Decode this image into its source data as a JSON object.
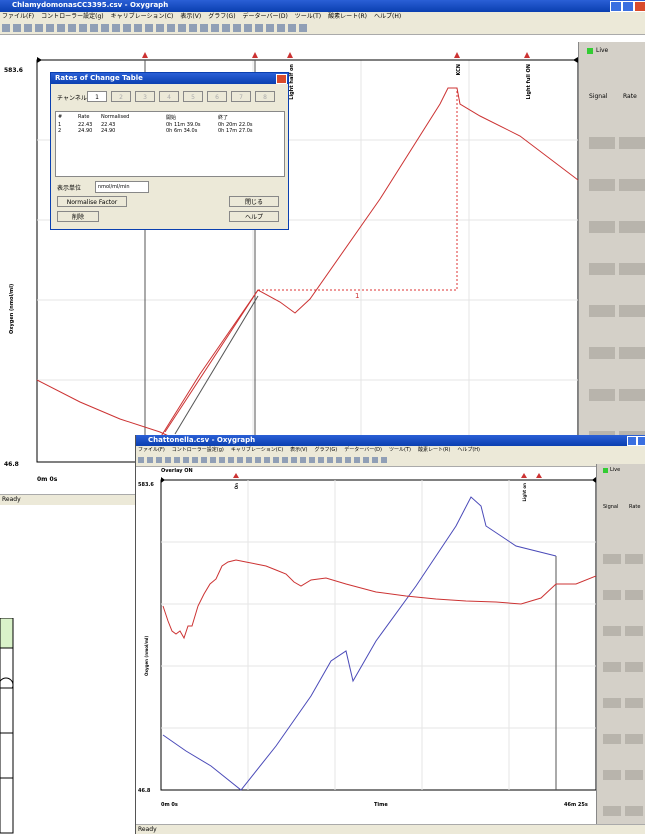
{
  "window1": {
    "title": "ChlamydomonasCC3395.csv - Oxygraph",
    "menu": [
      "ファイル(F)",
      "コントローラー設定(g)",
      "キャリブレーション(C)",
      "表示(V)",
      "グラフ(G)",
      "データーバー(D)",
      "ツール(T)",
      "酸素レート(R)",
      "ヘルプ(H)"
    ],
    "chart": {
      "y_max": "583.6",
      "y_min": "46.8",
      "y_label": "Oxygen (nmol/ml)",
      "x_start": "0m 0s",
      "events": [
        "Light half on",
        "KCN",
        "Light full ON"
      ],
      "annotation": "1"
    },
    "side_panel": {
      "live": "Live",
      "columns": [
        "Signal",
        "Rate"
      ]
    },
    "status": "Ready"
  },
  "dialog": {
    "title": "Rates of Change Table",
    "channel_label": "チャンネル",
    "channels": [
      "1",
      "2",
      "3",
      "4",
      "5",
      "6",
      "7",
      "8"
    ],
    "table": {
      "headers": [
        "#",
        "Rate",
        "Normalised",
        "開始",
        "終了"
      ],
      "rows": [
        [
          "1",
          "22.43",
          "22.43",
          "0h 11m 39.0s",
          "0h 20m 22.0s"
        ],
        [
          "2",
          "24.90",
          "24.90",
          "0h 6m 34.0s",
          "0h 17m 27.0s"
        ]
      ]
    },
    "unit_label": "表示単位",
    "unit": "nmol/ml/min",
    "buttons": {
      "normalise": "Normalise Factor",
      "delete": "削除",
      "close": "閉じる",
      "help": "ヘルプ"
    }
  },
  "window2": {
    "title": "Chattonella.csv - Oxygraph",
    "menu": [
      "ファイル(F)",
      "コントローラー設定(g)",
      "キャリブレーション(C)",
      "表示(V)",
      "グラフ(G)",
      "データーバー(D)",
      "ツール(T)",
      "酸素レート(R)",
      "ヘルプ(H)"
    ],
    "overlay": "Overlay ON",
    "chart": {
      "y_max": "583.6",
      "y_min": "46.8",
      "y_label": "Oxygen (nmol/ml)",
      "x_start": "0m 0s",
      "x_label": "Time",
      "x_end": "46m 25s",
      "events": [
        "On",
        "Light on"
      ]
    },
    "side_panel": {
      "live": "Live",
      "columns": [
        "Signal",
        "Rate"
      ]
    },
    "status": "Ready"
  }
}
